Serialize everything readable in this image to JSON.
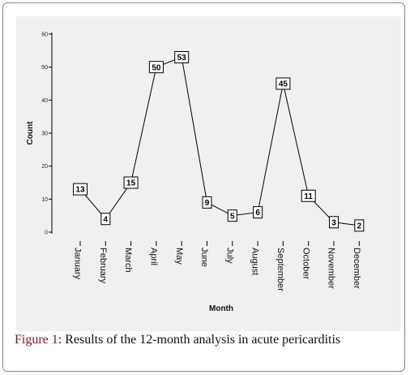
{
  "figure": {
    "label": "Figure 1",
    "text": ": Results of the 12-month analysis in acute pericarditis"
  },
  "chart_data": {
    "type": "line",
    "categories": [
      "January",
      "February",
      "March",
      "April",
      "May",
      "June",
      "July",
      "August",
      "September",
      "October",
      "November",
      "December"
    ],
    "values": [
      13,
      4,
      15,
      50,
      53,
      9,
      5,
      6,
      45,
      11,
      3,
      2
    ],
    "xlabel": "Month",
    "ylabel": "Count",
    "ylim": [
      0,
      60
    ],
    "yticks": [
      0,
      10,
      20,
      30,
      40,
      50,
      60
    ],
    "data_labels": true,
    "grid": false,
    "colors": {
      "line": "#000000",
      "background": "#f0f0f0",
      "label_box": "#ffffff"
    }
  }
}
